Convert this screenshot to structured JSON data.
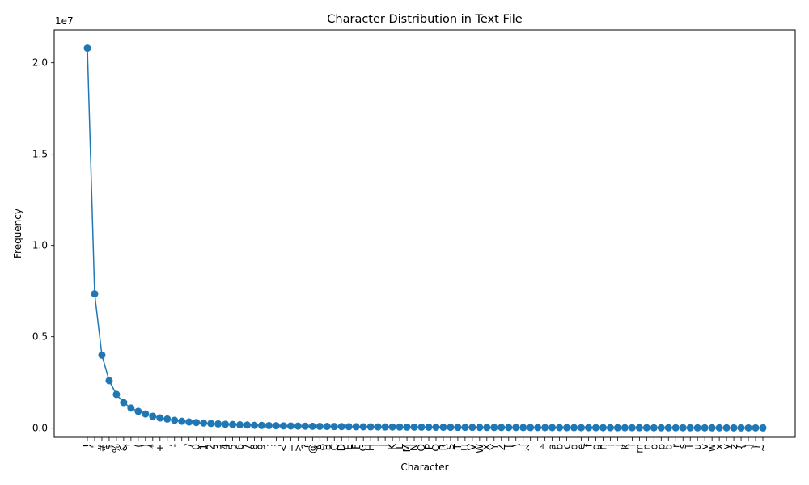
{
  "chart_data": {
    "type": "line",
    "title": "Character Distribution in Text File",
    "xlabel": "Character",
    "ylabel": "Frequency",
    "y_offset_label": "1e7",
    "y_ticks": [
      "0.0",
      "0.5",
      "1.0",
      "1.5",
      "2.0"
    ],
    "y_tick_values": [
      0,
      5000000,
      10000000,
      15000000,
      20000000
    ],
    "ylim": [
      -500000,
      21800000
    ],
    "grid": false,
    "marker": "circle",
    "line_color": "#1f77b4",
    "categories": [
      "!",
      "\"",
      "#",
      "$",
      "%",
      "&",
      "'",
      "(",
      ")",
      "*",
      "+",
      ",",
      "-",
      ".",
      "/",
      "0",
      "1",
      "2",
      "3",
      "4",
      "5",
      "6",
      "7",
      "8",
      "9",
      ":",
      ";",
      "<",
      "=",
      ">",
      "?",
      "@",
      "A",
      "B",
      "C",
      "D",
      "E",
      "F",
      "G",
      "H",
      "I",
      "J",
      "K",
      "L",
      "M",
      "N",
      "O",
      "P",
      "Q",
      "R",
      "S",
      "T",
      "U",
      "V",
      "W",
      "X",
      "Y",
      "Z",
      "[",
      "\\",
      "]",
      "^",
      "_",
      "`",
      "a",
      "b",
      "c",
      "d",
      "e",
      "f",
      "g",
      "h",
      "i",
      "j",
      "k",
      "l",
      "m",
      "n",
      "o",
      "p",
      "q",
      "r",
      "s",
      "t",
      "u",
      "v",
      "w",
      "x",
      "y",
      "z",
      "{",
      "|",
      "}",
      "~"
    ],
    "series": [
      {
        "values": [
          20800000,
          7350000,
          4000000,
          2600000,
          1850000,
          1400000,
          1100000,
          920000,
          780000,
          650000,
          560000,
          500000,
          430000,
          380000,
          340000,
          310000,
          280000,
          255000,
          235000,
          215000,
          200000,
          185000,
          172000,
          160000,
          150000,
          142000,
          134000,
          127000,
          120000,
          114000,
          109000,
          104000,
          99000,
          95000,
          91000,
          87000,
          83000,
          80000,
          77000,
          74000,
          71000,
          68000,
          66000,
          63000,
          61000,
          59000,
          57000,
          55000,
          53000,
          51000,
          49000,
          47000,
          46000,
          44000,
          43000,
          41000,
          40000,
          39000,
          38000,
          37000,
          36000,
          35000,
          34000,
          33000,
          32000,
          31000,
          30000,
          29000,
          28000,
          27000,
          26500,
          26000,
          25500,
          25000,
          24500,
          24000,
          23500,
          23000,
          22500,
          22000,
          21500,
          21000,
          20500,
          20000,
          19500,
          19000,
          18500,
          18000,
          17500,
          17000,
          16500,
          16000,
          15500,
          15000
        ]
      }
    ]
  }
}
